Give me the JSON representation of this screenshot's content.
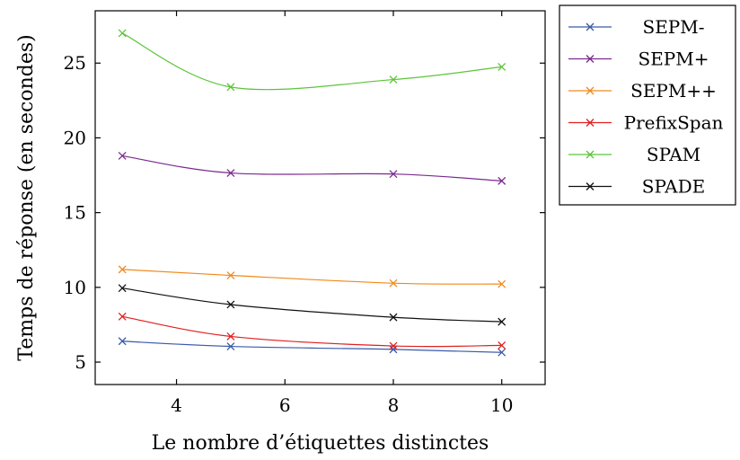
{
  "chart_data": {
    "type": "line",
    "title": "",
    "xlabel": "Le nombre d’étiquettes distinctes",
    "ylabel": "Temps de réponse (en secondes)",
    "xlim": [
      2.5,
      10.8
    ],
    "ylim": [
      3.5,
      28.5
    ],
    "xticks": [
      4,
      6,
      8,
      10
    ],
    "yticks": [
      5,
      10,
      15,
      20,
      25
    ],
    "grid": false,
    "legend_position": "outside-right",
    "series": [
      {
        "name": "SEPM-",
        "color": "#3b5aa8",
        "x": [
          3,
          5,
          8,
          10
        ],
        "y": [
          6.4,
          6.05,
          5.85,
          5.65
        ]
      },
      {
        "name": "SEPM+",
        "color": "#7a2b8f",
        "x": [
          3,
          5,
          8,
          10
        ],
        "y": [
          18.8,
          17.65,
          17.58,
          17.12
        ]
      },
      {
        "name": "SEPM++",
        "color": "#f08a1c",
        "x": [
          3,
          5,
          8,
          10
        ],
        "y": [
          11.2,
          10.8,
          10.28,
          10.22
        ]
      },
      {
        "name": "PrefixSpan",
        "color": "#e02020",
        "x": [
          3,
          5,
          8,
          10
        ],
        "y": [
          8.05,
          6.72,
          6.08,
          6.12
        ]
      },
      {
        "name": "SPAM",
        "color": "#5cc43a",
        "x": [
          3,
          5,
          8,
          10
        ],
        "y": [
          27.0,
          23.4,
          23.9,
          24.75
        ]
      },
      {
        "name": "SPADE",
        "color": "#111111",
        "x": [
          3,
          5,
          8,
          10
        ],
        "y": [
          9.95,
          8.85,
          8.0,
          7.7
        ]
      }
    ]
  }
}
